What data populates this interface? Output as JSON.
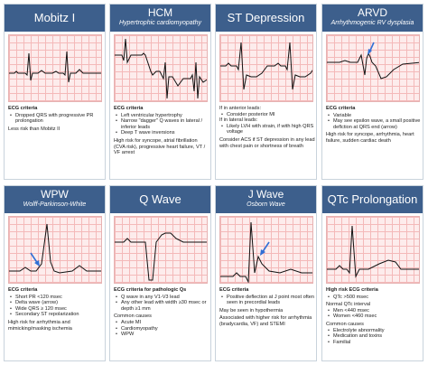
{
  "cards": [
    {
      "title": "Mobitz I",
      "subtitle": "",
      "criteria_label": "ECG criteria",
      "bullets": [
        "Dropped QRS with progressive PR prolongation"
      ],
      "notes": [
        "Less risk than Mobitz II"
      ]
    },
    {
      "title": "HCM",
      "subtitle": "Hypertrophic cardiomyopathy",
      "criteria_label": "ECG criteria",
      "bullets": [
        "Left ventricular hypertrophy",
        "Narrow \"dagger\" Q waves in lateral / inferior leads",
        "Deep T wave inversions"
      ],
      "notes": [
        "High risk for syncope, atrial fibrillation (CVA risk), progressive heart failure, VT / VF arrest"
      ]
    },
    {
      "title": "ST Depression",
      "subtitle": "",
      "intro1": "If in anterior leads:",
      "intro1_items": [
        "Consider posterior MI"
      ],
      "intro2": "If in lateral leads:",
      "intro2_items": [
        "Likely LVH with strain, if with high QRS voltage"
      ],
      "notes": [
        "Consider ACS if ST depression in any lead with chest pain or shortness of breath"
      ]
    },
    {
      "title": "ARVD",
      "subtitle": "Arrhythmogenic RV dysplasia",
      "criteria_label": "ECG criteria",
      "bullets": [
        "Variable",
        "May see epsilon wave, a small positive deflction at QRS end (arrow)"
      ],
      "notes": [
        "High risk for syncope, arrhythmia, heart failure, sudden cardiac death"
      ]
    },
    {
      "title": "WPW",
      "subtitle": "Wolff-Parkinson-White",
      "criteria_label": "ECG criteria",
      "bullets": [
        "Short PR <120 msec",
        "Delta wave (arrow)",
        "Wide QRS ≥ 120 msec",
        "Secondary ST repolarization"
      ],
      "notes": [
        "High risk for arrhythmia and mimicking/masking ischemia"
      ]
    },
    {
      "title": "Q Wave",
      "subtitle": "",
      "criteria_label": "ECG criteria for pathologic Qs",
      "bullets": [
        "Q wave in any V1-V3 lead",
        "Any other lead with width ≥30 msec or depth ≥1 mm"
      ],
      "causes_label": "Common causes",
      "causes": [
        "Acute MI",
        "Cardiomyopathy",
        "WPW"
      ]
    },
    {
      "title": "J Wave",
      "subtitle": "Osborn Wave",
      "criteria_label": "ECG criteria",
      "bullets": [
        "Positive deflection at J point most often seen in precordial leads"
      ],
      "notes": [
        "May be seen in hypothermia",
        "Associated with higher risk for arrhythmia (bradycardia, VF) and STEMI"
      ]
    },
    {
      "title": "QTc Prolongation",
      "subtitle": "",
      "criteria_label": "High risk ECG criteria",
      "bullets": [
        "QTc >500 msec"
      ],
      "normal_label": "Normal QTc interval",
      "normal": [
        "Men      <440 msec",
        "Women  <460 msec"
      ],
      "causes_label": "Common causes",
      "causes": [
        "Electrolyte abnormality",
        "Medication and toxins",
        "Familial"
      ]
    }
  ],
  "colors": {
    "header": "#3d5f8c",
    "trace": "#111111",
    "arrow": "#2f6fd6",
    "grid": "#f4b9b9"
  }
}
